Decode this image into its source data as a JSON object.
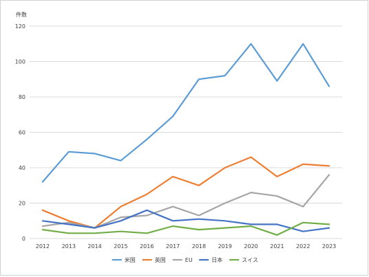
{
  "chart_data": {
    "type": "line",
    "ylabel": "件数",
    "ylim": [
      0,
      120
    ],
    "y_ticks": [
      0,
      20,
      40,
      60,
      80,
      100,
      120
    ],
    "grid": "horizontal",
    "legend_position": "bottom",
    "categories": [
      "2012",
      "2013",
      "2014",
      "2015",
      "2016",
      "2017",
      "2018",
      "2019",
      "2020",
      "2021",
      "2022",
      "2023"
    ],
    "series": [
      {
        "name": "米国",
        "color": "#5b9bd5",
        "values": [
          32,
          49,
          48,
          44,
          56,
          69,
          90,
          92,
          110,
          89,
          110,
          86
        ]
      },
      {
        "name": "英国",
        "color": "#ed7d31",
        "values": [
          16,
          10,
          6,
          18,
          25,
          35,
          30,
          40,
          46,
          35,
          42,
          41
        ]
      },
      {
        "name": "EU",
        "color": "#a5a5a5",
        "values": [
          7,
          9,
          6,
          12,
          13,
          18,
          13,
          20,
          26,
          24,
          18,
          36
        ]
      },
      {
        "name": "日本",
        "color": "#4472c4",
        "values": [
          10,
          8,
          6,
          10,
          16,
          10,
          11,
          10,
          8,
          8,
          4,
          6
        ]
      },
      {
        "name": "スイス",
        "color": "#70ad47",
        "values": [
          5,
          3,
          3,
          4,
          3,
          7,
          5,
          6,
          7,
          2,
          9,
          8
        ]
      }
    ]
  }
}
